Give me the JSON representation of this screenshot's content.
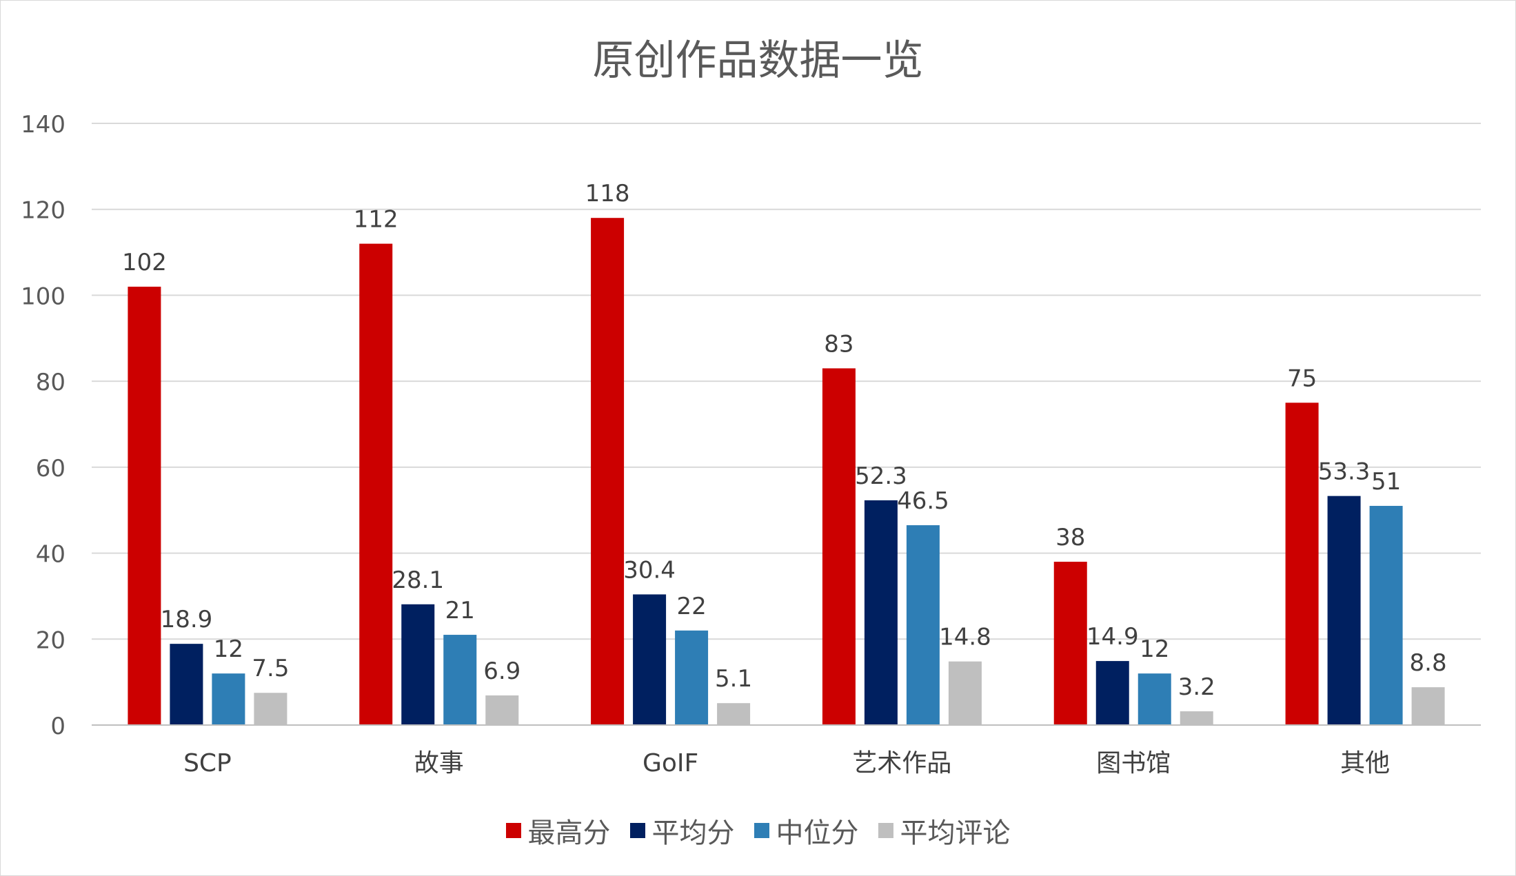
{
  "colors": {
    "series": [
      "#cc0000",
      "#002060",
      "#2e7eb5",
      "#bfbfbf"
    ],
    "grid": "#d9d9d9",
    "text": "#404040"
  },
  "chart_data": {
    "type": "bar",
    "title": "原创作品数据一览",
    "xlabel": "",
    "ylabel": "",
    "ylim": [
      0,
      140
    ],
    "yticks": [
      0,
      20,
      40,
      60,
      80,
      100,
      120,
      140
    ],
    "grid": true,
    "legend_position": "bottom",
    "categories": [
      "SCP",
      "故事",
      "GoIF",
      "艺术作品",
      "图书馆",
      "其他"
    ],
    "series": [
      {
        "name": "最高分",
        "values": [
          102,
          112,
          118,
          83,
          38,
          75
        ]
      },
      {
        "name": "平均分",
        "values": [
          18.9,
          28.1,
          30.4,
          52.3,
          14.9,
          53.3
        ]
      },
      {
        "name": "中位分",
        "values": [
          12,
          21,
          22,
          46.5,
          12,
          51
        ]
      },
      {
        "name": "平均评论",
        "values": [
          7.5,
          6.9,
          5.1,
          14.8,
          3.2,
          8.8
        ]
      }
    ]
  }
}
